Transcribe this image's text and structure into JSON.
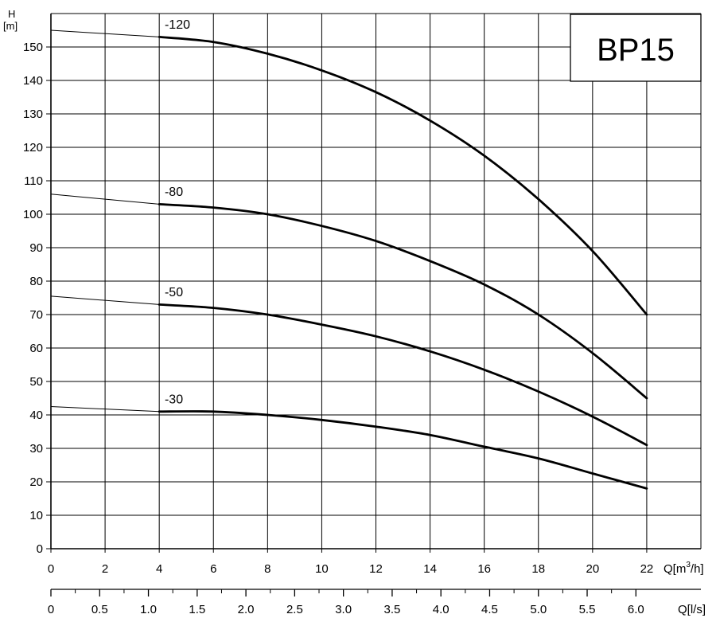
{
  "chart_data": {
    "type": "line",
    "title": "",
    "model_label": "BP15",
    "ylabel_top": "H",
    "ylabel_unit": "[m]",
    "xlabel_primary_prefix": "Q[m",
    "xlabel_primary_sup": "3",
    "xlabel_primary_suffix": "/h]",
    "xlabel_secondary": "Q[l/s]",
    "xlim": [
      0,
      24
    ],
    "ylim": [
      0,
      160
    ],
    "grid": true,
    "x_ticks": [
      "0",
      "2",
      "4",
      "6",
      "8",
      "10",
      "12",
      "14",
      "16",
      "18",
      "20",
      "22"
    ],
    "x_tick_values": [
      0,
      2,
      4,
      6,
      8,
      10,
      12,
      14,
      16,
      18,
      20,
      22
    ],
    "y_ticks": [
      "0",
      "10",
      "20",
      "30",
      "40",
      "50",
      "60",
      "70",
      "80",
      "90",
      "100",
      "110",
      "120",
      "130",
      "140",
      "150"
    ],
    "y_tick_values": [
      0,
      10,
      20,
      30,
      40,
      50,
      60,
      70,
      80,
      90,
      100,
      110,
      120,
      130,
      140,
      150
    ],
    "ls_ticks": [
      "0",
      "0.5",
      "1.0",
      "1.5",
      "2.0",
      "2.5",
      "3.0",
      "3.5",
      "4.0",
      "4.5",
      "5.0",
      "5.5",
      "6.0"
    ],
    "ls_tick_values": [
      0,
      0.5,
      1.0,
      1.5,
      2.0,
      2.5,
      3.0,
      3.5,
      4.0,
      4.5,
      5.0,
      5.5,
      6.0
    ],
    "series": [
      {
        "name": "-120",
        "thin_x": [
          0,
          4
        ],
        "thin_y": [
          155,
          153
        ],
        "x": [
          4,
          6,
          8,
          10,
          12,
          14,
          16,
          18,
          20,
          22
        ],
        "y": [
          153,
          151.5,
          148,
          143,
          136.5,
          128,
          117.5,
          104.5,
          89,
          70
        ],
        "label_at": [
          4.2,
          155.5
        ]
      },
      {
        "name": "-80",
        "thin_x": [
          0,
          4
        ],
        "thin_y": [
          106,
          103
        ],
        "x": [
          4,
          6,
          8,
          10,
          12,
          14,
          16,
          18,
          20,
          22
        ],
        "y": [
          103,
          102,
          100,
          96.5,
          92,
          86,
          79,
          70,
          58.5,
          45
        ],
        "label_at": [
          4.2,
          105.5
        ]
      },
      {
        "name": "-50",
        "thin_x": [
          0,
          4
        ],
        "thin_y": [
          75.5,
          73
        ],
        "x": [
          4,
          6,
          8,
          10,
          12,
          14,
          16,
          18,
          20,
          22
        ],
        "y": [
          73,
          72,
          70,
          67,
          63.5,
          59,
          53.5,
          47,
          39.5,
          31
        ],
        "label_at": [
          4.2,
          75.5
        ]
      },
      {
        "name": "-30",
        "thin_x": [
          0,
          4
        ],
        "thin_y": [
          42.5,
          41
        ],
        "x": [
          4,
          6,
          8,
          10,
          12,
          14,
          16,
          18,
          20,
          22
        ],
        "y": [
          41,
          41,
          40,
          38.5,
          36.5,
          34,
          30.5,
          27,
          22.5,
          18
        ],
        "label_at": [
          4.2,
          43.5
        ]
      }
    ]
  }
}
